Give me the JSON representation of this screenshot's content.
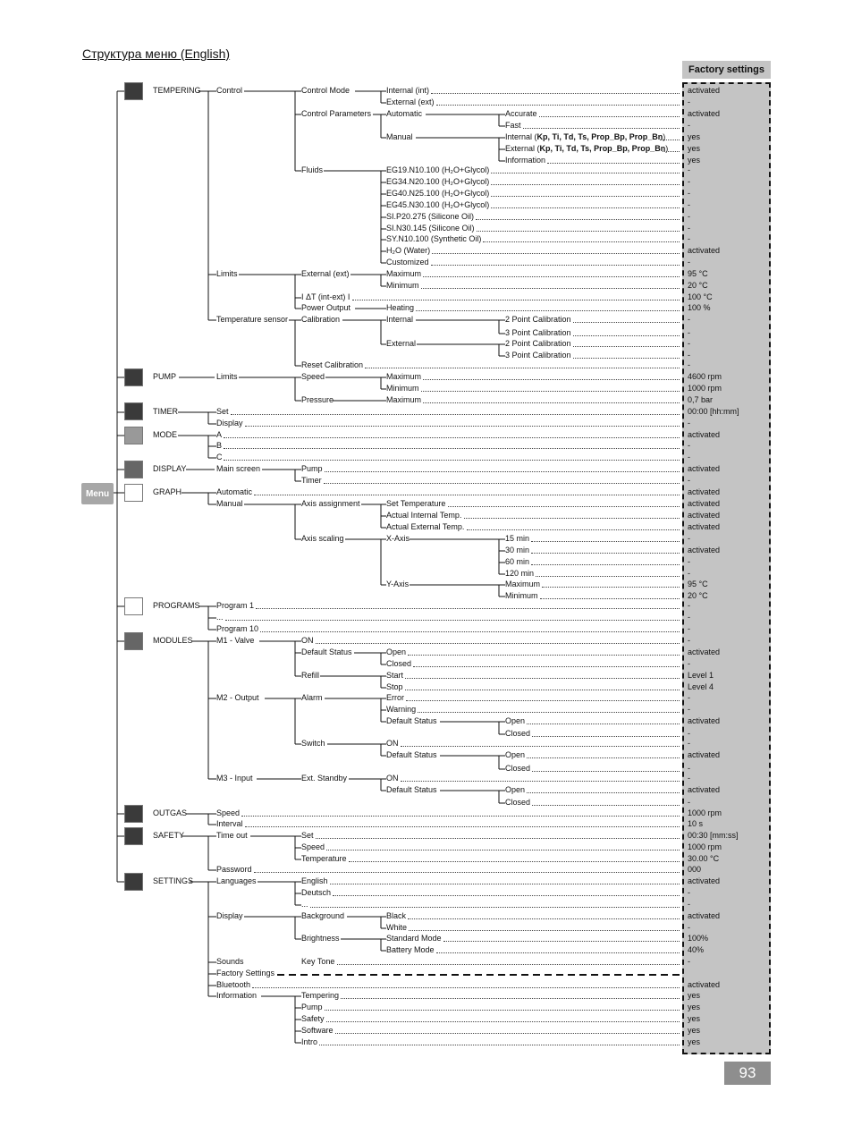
{
  "page_title": "Структура меню (English)",
  "factory_header": "Factory settings",
  "menu_label": "Menu",
  "page_number": "93",
  "rows": [
    {
      "y": 102,
      "c1": "TEMPERING",
      "c2": "Control",
      "c3": "Control Mode",
      "c4": "Internal (int)",
      "v": "activated"
    },
    {
      "y": 115,
      "c4": "External (ext)",
      "v": "-"
    },
    {
      "y": 128,
      "c3": "Control Parameters",
      "c4": "Automatic",
      "c5": "Accurate",
      "v": "activated"
    },
    {
      "y": 141,
      "c5": "Fast",
      "v": "-"
    },
    {
      "y": 154,
      "c4": "Manual",
      "c5": "Internal (Kp, Ti, Td, Ts, Prop_Bp, Prop_Bn)",
      "v": "yes"
    },
    {
      "y": 167,
      "c5": "External (Kp, Ti, Td, Ts, Prop_Bp, Prop_Bn)",
      "v": "yes"
    },
    {
      "y": 180,
      "c5": "Information",
      "v": "yes"
    },
    {
      "y": 191,
      "c3": "Fluids",
      "c4": "EG19.N10.100 (H₂O+Glycol)",
      "v": "-"
    },
    {
      "y": 204,
      "c4": "EG34.N20.100 (H₂O+Glycol)",
      "v": "-"
    },
    {
      "y": 217,
      "c4": "EG40.N25.100 (H₂O+Glycol)",
      "v": "-"
    },
    {
      "y": 230,
      "c4": "EG45.N30.100 (H₂O+Glycol)",
      "v": "-"
    },
    {
      "y": 243,
      "c4": "SI.P20.275 (Silicone Oil)",
      "v": "-"
    },
    {
      "y": 256,
      "c4": "SI.N30.145 (Silicone Oil)",
      "v": "-"
    },
    {
      "y": 268,
      "c4": "SY.N10.100 (Synthetic Oil)",
      "v": "-"
    },
    {
      "y": 281,
      "c4": "H₂O (Water)",
      "v": "activated"
    },
    {
      "y": 294,
      "c4": "Customized",
      "v": "-"
    },
    {
      "y": 307,
      "c2": "Limits",
      "c3": "External (ext)",
      "c4": "Maximum",
      "v": "95 °C"
    },
    {
      "y": 320,
      "c4": "Minimum",
      "v": "20 °C"
    },
    {
      "y": 333,
      "c3": "I ΔT (int-ext) I",
      "v": "100 °C"
    },
    {
      "y": 345,
      "c3": "Power Output",
      "c4": "Heating",
      "v": "100 %"
    },
    {
      "y": 358,
      "c2": "Temperature sensor",
      "c3": "Calibration",
      "c4": "Internal",
      "c5": "2 Point Calibration",
      "v": "-"
    },
    {
      "y": 373,
      "c5": "3 Point Calibration",
      "v": "-"
    },
    {
      "y": 385,
      "c4": "External",
      "c5": "2 Point Calibration",
      "v": "-"
    },
    {
      "y": 398,
      "c5": "3 Point Calibration",
      "v": "-"
    },
    {
      "y": 409,
      "c3": "Reset Calibration",
      "v": "-"
    },
    {
      "y": 422,
      "c1": "PUMP",
      "c2": "Limits",
      "c3": "Speed",
      "c4": "Maximum",
      "v": "4600 rpm"
    },
    {
      "y": 435,
      "c4": "Minimum",
      "v": "1000 rpm"
    },
    {
      "y": 448,
      "c3": "Pressure",
      "c4": "Maximum",
      "v": "0,7 bar"
    },
    {
      "y": 461,
      "c1": "TIMER",
      "c2": "Set",
      "v": "00:00 [hh:mm]"
    },
    {
      "y": 474,
      "c2": "Display",
      "v": "-"
    },
    {
      "y": 487,
      "c1": "MODE",
      "c2": "A",
      "v": "activated"
    },
    {
      "y": 499,
      "c2": "B",
      "v": "-"
    },
    {
      "y": 512,
      "c2": "C",
      "v": "-"
    },
    {
      "y": 525,
      "c1": "DISPLAY",
      "c2": "Main screen",
      "c3": "Pump",
      "v": "activated"
    },
    {
      "y": 538,
      "c3": "Timer",
      "v": "-"
    },
    {
      "y": 551,
      "c1": "GRAPH",
      "c2": "Automatic",
      "v": "activated"
    },
    {
      "y": 564,
      "c2": "Manual",
      "c3": "Axis assignment",
      "c4": "Set Temperature",
      "v": "activated"
    },
    {
      "y": 577,
      "c4": "Actual Internal Temp.",
      "v": "activated"
    },
    {
      "y": 590,
      "c4": "Actual External Temp.",
      "v": "activated"
    },
    {
      "y": 603,
      "c3": "Axis scaling",
      "c4": "X-Axis",
      "c5": "15 min",
      "v": "-"
    },
    {
      "y": 616,
      "c5": "30 min",
      "v": "activated"
    },
    {
      "y": 629,
      "c5": "60 min",
      "v": "-"
    },
    {
      "y": 642,
      "c5": "120 min",
      "v": "-"
    },
    {
      "y": 654,
      "c4": "Y-Axis",
      "c5": "Maximum",
      "v": "95 °C"
    },
    {
      "y": 667,
      "c5": "Minimum",
      "v": "20 °C"
    },
    {
      "y": 678,
      "c1": "PROGRAMS",
      "c2": "Program 1",
      "v": "-"
    },
    {
      "y": 691,
      "c2": "...",
      "v": "-"
    },
    {
      "y": 704,
      "c2": "Program 10",
      "v": "-"
    },
    {
      "y": 717,
      "c1": "MODULES",
      "c2": "M1 - Valve",
      "c3": "ON",
      "v": "-"
    },
    {
      "y": 730,
      "c3": "Default Status",
      "c4": "Open",
      "v": "activated"
    },
    {
      "y": 743,
      "c4": "Closed",
      "v": "-"
    },
    {
      "y": 756,
      "c3": "Refill",
      "c4": "Start",
      "v": "Level 1"
    },
    {
      "y": 769,
      "c4": "Stop",
      "v": "Level 4"
    },
    {
      "y": 781,
      "c2": "M2 - Output",
      "c3": "Alarm",
      "c4": "Error",
      "v": "-"
    },
    {
      "y": 794,
      "c4": "Warning",
      "v": "-"
    },
    {
      "y": 807,
      "c4": "Default Status",
      "c5": "Open",
      "v": "activated"
    },
    {
      "y": 821,
      "c5": "Closed",
      "v": "-"
    },
    {
      "y": 832,
      "c3": "Switch",
      "c4": "ON",
      "v": "-"
    },
    {
      "y": 845,
      "c4": "Default Status",
      "c5": "Open",
      "v": "activated"
    },
    {
      "y": 860,
      "c5": "Closed",
      "v": "-"
    },
    {
      "y": 871,
      "c2": "M3 - Input",
      "c3": "Ext. Standby",
      "c4": "ON",
      "v": "-"
    },
    {
      "y": 884,
      "c4": "Default Status",
      "c5": "Open",
      "v": "activated"
    },
    {
      "y": 898,
      "c5": "Closed",
      "v": "-"
    },
    {
      "y": 910,
      "c1": "OUTGAS",
      "c2": "Speed",
      "v": "1000 rpm"
    },
    {
      "y": 922,
      "c2": "Interval",
      "v": "10 s"
    },
    {
      "y": 935,
      "c1": "SAFETY",
      "c2": "Time out",
      "c3": "Set",
      "v": "00:30 [mm:ss]"
    },
    {
      "y": 948,
      "c3": "Speed",
      "v": "1000 rpm"
    },
    {
      "y": 961,
      "c3": "Temperature",
      "v": "30.00 °C"
    },
    {
      "y": 973,
      "c2": "Password",
      "v": "000"
    },
    {
      "y": 986,
      "c1": "SETTINGS",
      "c2": "Languages",
      "c3": "English",
      "v": "activated"
    },
    {
      "y": 999,
      "c3": "Deutsch",
      "v": "-"
    },
    {
      "y": 1012,
      "c3": "...",
      "v": "-"
    },
    {
      "y": 1025,
      "c2": "Display",
      "c3": "Background",
      "c4": "Black",
      "v": "activated"
    },
    {
      "y": 1038,
      "c4": "White",
      "v": "-"
    },
    {
      "y": 1050,
      "c3": "Brightness",
      "c4": "Standard Mode",
      "v": "100%"
    },
    {
      "y": 1063,
      "c4": "Battery Mode",
      "v": "40%"
    },
    {
      "y": 1076,
      "c2": "Sounds",
      "c3": "Key Tone",
      "v": "-"
    },
    {
      "y": 1089,
      "c2": "Factory Settings",
      "v": ""
    },
    {
      "y": 1102,
      "c2": "Bluetooth",
      "v": "activated"
    },
    {
      "y": 1114,
      "c2": "Information",
      "c3": "Tempering",
      "v": "yes"
    },
    {
      "y": 1127,
      "c3": "Pump",
      "v": "yes"
    },
    {
      "y": 1140,
      "c3": "Safety",
      "v": "yes"
    },
    {
      "y": 1153,
      "c3": "Software",
      "v": "yes"
    },
    {
      "y": 1166,
      "c3": "Intro",
      "v": "yes"
    }
  ]
}
